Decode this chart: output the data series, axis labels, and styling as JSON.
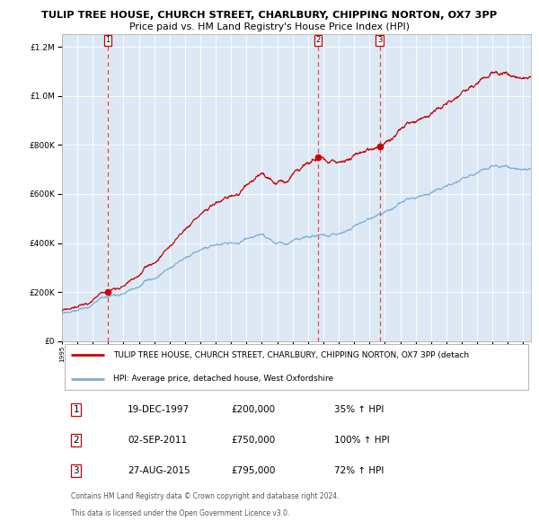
{
  "title1": "TULIP TREE HOUSE, CHURCH STREET, CHARLBURY, CHIPPING NORTON, OX7 3PP",
  "title2": "Price paid vs. HM Land Registry's House Price Index (HPI)",
  "sales": [
    {
      "index": 1,
      "date_num": 1997.97,
      "price": 200000,
      "label": "19-DEC-1997",
      "pct": "35%"
    },
    {
      "index": 2,
      "date_num": 2011.67,
      "price": 750000,
      "label": "02-SEP-2011",
      "pct": "100%"
    },
    {
      "index": 3,
      "date_num": 2015.66,
      "price": 795000,
      "label": "27-AUG-2015",
      "pct": "72%"
    }
  ],
  "legend_red": "TULIP TREE HOUSE, CHURCH STREET, CHARLBURY, CHIPPING NORTON, OX7 3PP (detach",
  "legend_blue": "HPI: Average price, detached house, West Oxfordshire",
  "footer1": "Contains HM Land Registry data © Crown copyright and database right 2024.",
  "footer2": "This data is licensed under the Open Government Licence v3.0.",
  "table_rows": [
    [
      "1",
      "19-DEC-1997",
      "£200,000",
      "35% ↑ HPI"
    ],
    [
      "2",
      "02-SEP-2011",
      "£750,000",
      "100% ↑ HPI"
    ],
    [
      "3",
      "27-AUG-2015",
      "£795,000",
      "72% ↑ HPI"
    ]
  ],
  "ylim": [
    0,
    1250000
  ],
  "xlim_start": 1995.0,
  "xlim_end": 2025.5,
  "plot_bg": "#dce9f5",
  "red_color": "#cc0000",
  "blue_color": "#7aaed6",
  "dashed_color": "#ee4444",
  "grid_color": "#ffffff"
}
